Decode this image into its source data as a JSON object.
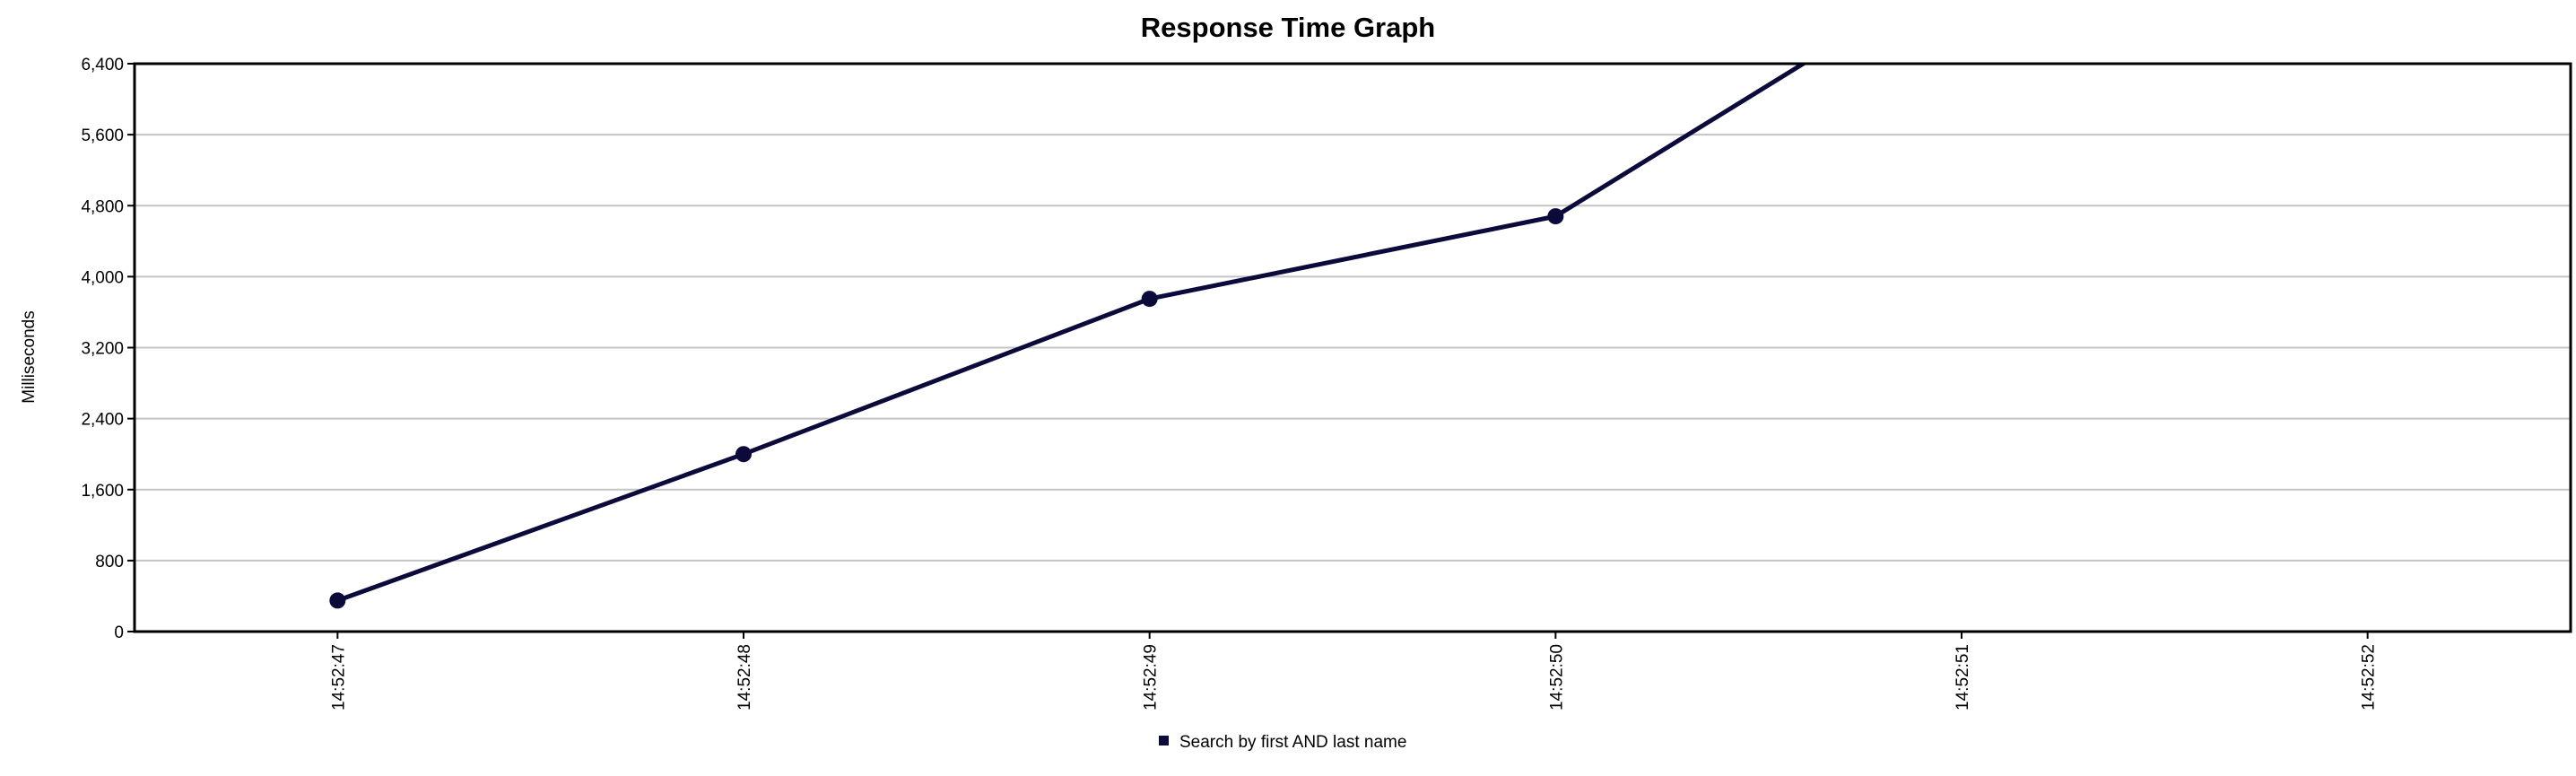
{
  "chart_data": {
    "type": "line",
    "title": "Response Time Graph",
    "xlabel": "",
    "ylabel": "Milliseconds",
    "x": [
      "14:52:47",
      "14:52:48",
      "14:52:49",
      "14:52:50",
      "14:52:51",
      "14:52:52"
    ],
    "x_tick_labels": [
      "14:52:47",
      "14:52:48",
      "14:52:49",
      "14:52:50",
      "14:52:51",
      "14:52:52"
    ],
    "y_tick_labels": [
      "0",
      "800",
      "1,600",
      "2,400",
      "3,200",
      "4,000",
      "4,800",
      "5,600",
      "6,400"
    ],
    "y_ticks": [
      0,
      800,
      1600,
      2400,
      3200,
      4000,
      4800,
      5600,
      6400
    ],
    "ylim": [
      0,
      6400
    ],
    "grid": true,
    "legend_position": "bottom",
    "series": [
      {
        "name": "Search by first AND last name",
        "color": "#0b0a3a",
        "values": [
          350,
          2000,
          3750,
          4680,
          7500,
          null
        ]
      }
    ]
  }
}
